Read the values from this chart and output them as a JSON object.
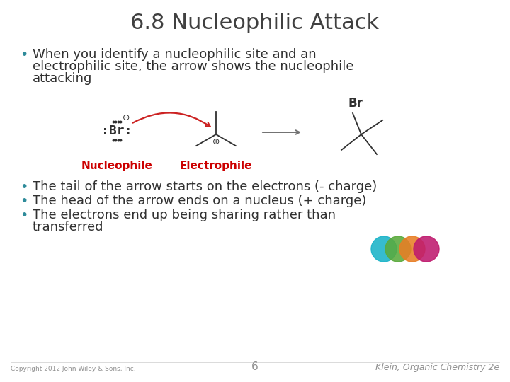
{
  "title": "6.8 Nucleophilic Attack",
  "title_fontsize": 22,
  "title_color": "#404040",
  "bg_color": "#ffffff",
  "bullet_color": "#2E8B9A",
  "bullet2_text": "The tail of the arrow starts on the electrons (- charge)",
  "bullet3_text": "The head of the arrow ends on a nucleus (+ charge)",
  "bullet4_line1": "The electrons end up being sharing rather than",
  "bullet4_line2": "transferred",
  "nucleophile_label": "Nucleophile",
  "electrophile_label": "Electrophile",
  "label_color": "#cc0000",
  "footer_left": "Copyright 2012 John Wiley & Sons, Inc.",
  "footer_center": "6",
  "footer_right": "Klein, Organic Chemistry 2e",
  "footer_color": "#909090",
  "circle_colors": [
    "#1ab3c8",
    "#5aaa3c",
    "#e87e25",
    "#bf1a6e"
  ],
  "body_fontsize": 13,
  "body_color": "#303030"
}
